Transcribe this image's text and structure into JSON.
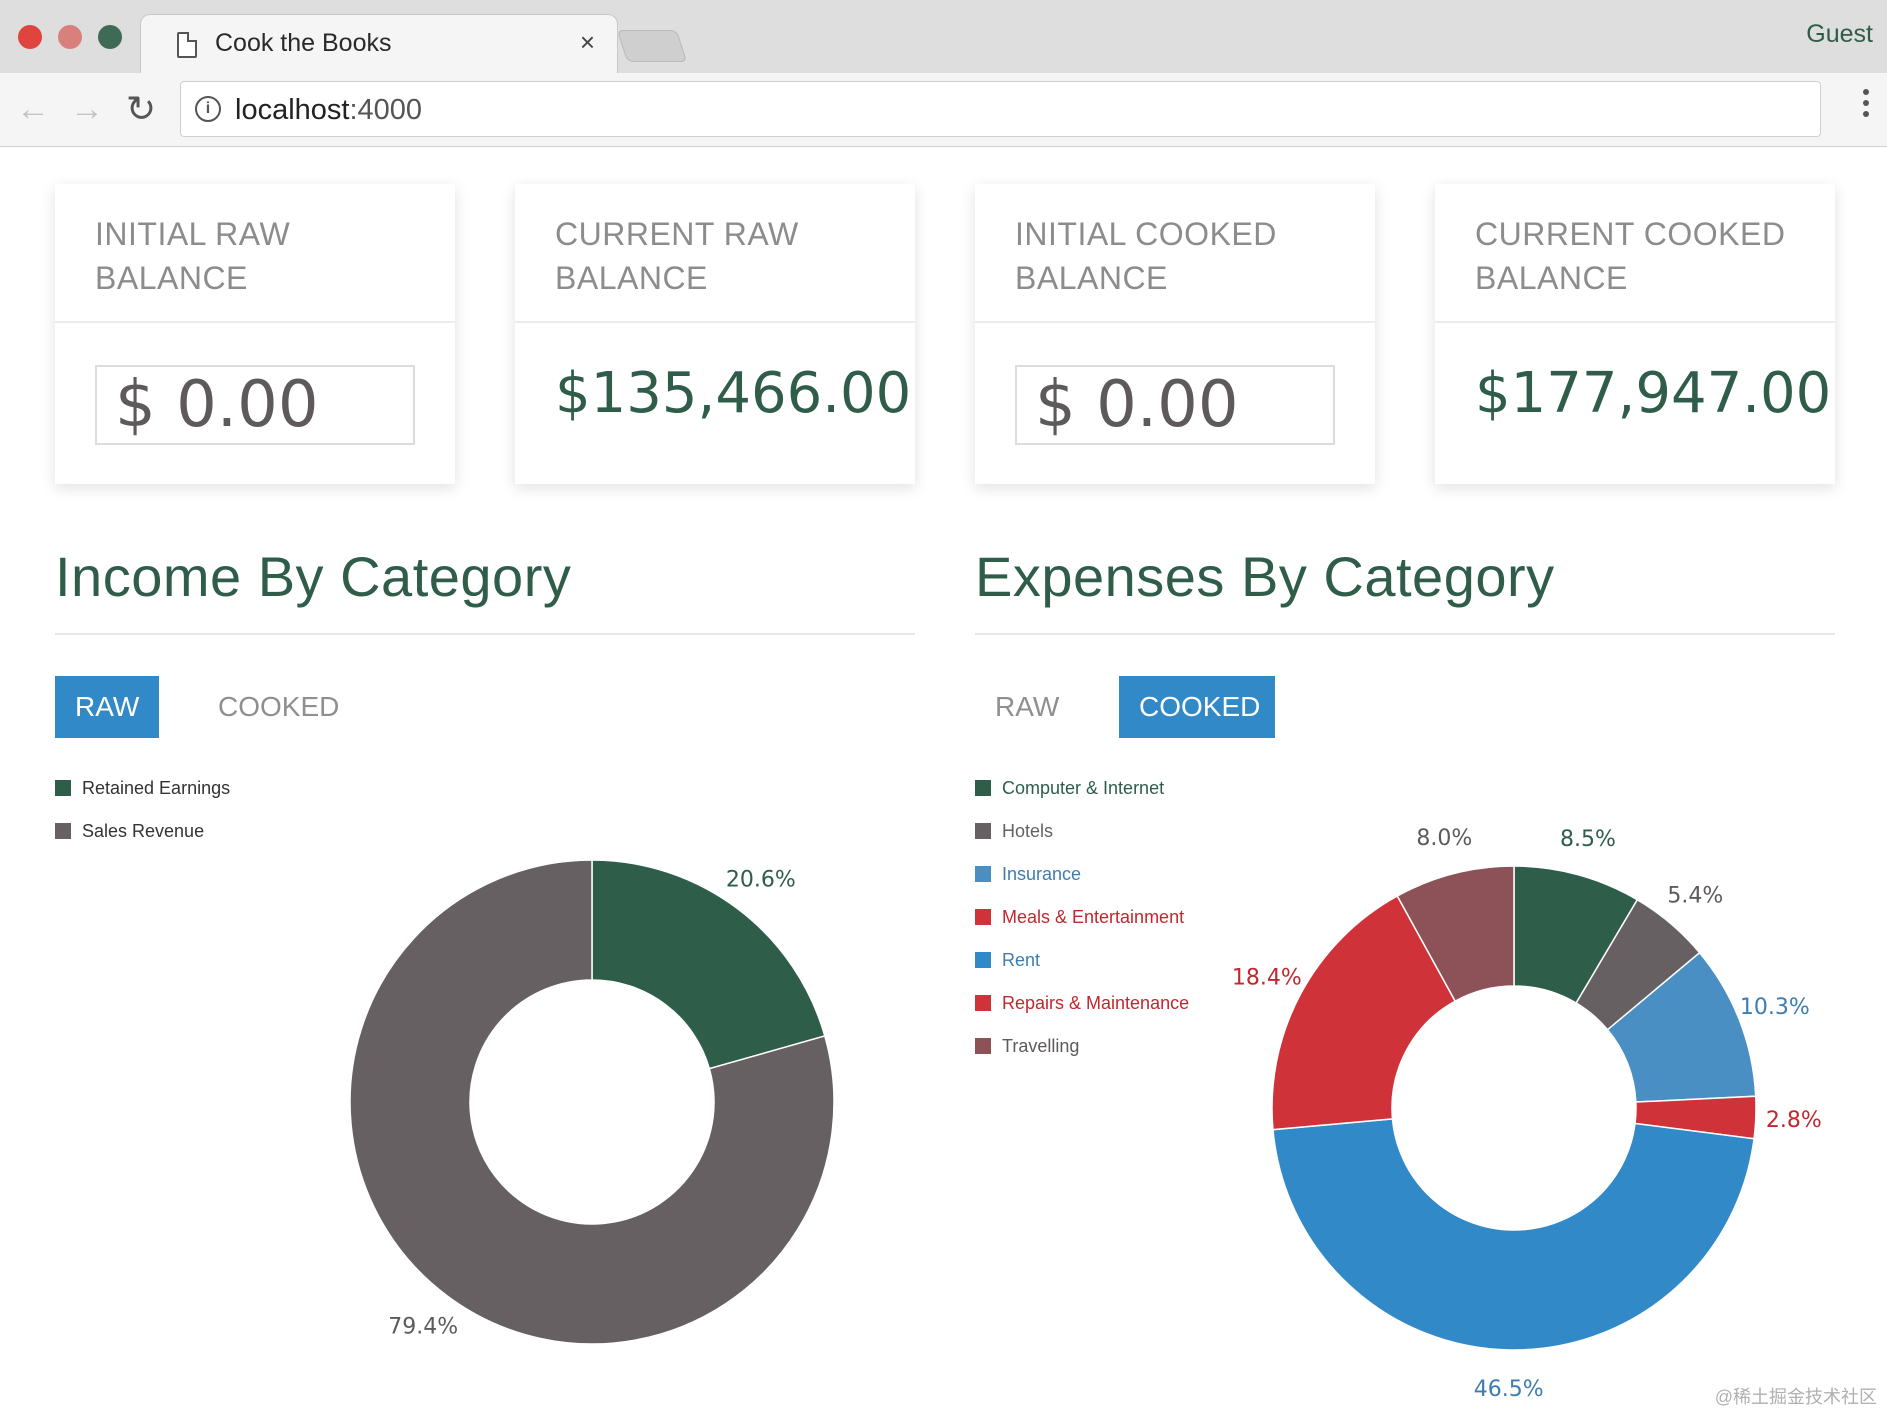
{
  "browser": {
    "tab_title": "Cook the Books",
    "tab_close": "×",
    "profile": "Guest",
    "url_host": "localhost",
    "url_port": ":4000",
    "back": "←",
    "forward": "→",
    "reload": "↻",
    "info": "i"
  },
  "cards": [
    {
      "title": "INITIAL RAW BALANCE",
      "value": "$ 0.00",
      "kind": "input"
    },
    {
      "title": "CURRENT RAW BALANCE",
      "value": "$135,466.00",
      "kind": "display"
    },
    {
      "title": "INITIAL COOKED BALANCE",
      "value": "$ 0.00",
      "kind": "input"
    },
    {
      "title": "CURRENT COOKED BALANCE",
      "value": "$177,947.00",
      "kind": "display"
    }
  ],
  "income": {
    "title": "Income By Category",
    "toggle_raw": "RAW",
    "toggle_cooked": "COOKED",
    "active": "RAW"
  },
  "expenses": {
    "title": "Expenses By Category",
    "toggle_raw": "RAW",
    "toggle_cooked": "COOKED",
    "active": "COOKED"
  },
  "colors": {
    "accent": "#3289c7",
    "brand_green": "#2f5d4a"
  },
  "chart_data": [
    {
      "type": "pie",
      "donut": true,
      "title": "Income By Category",
      "labels": [
        "Retained Earnings",
        "Sales Revenue"
      ],
      "values": [
        20.6,
        79.4
      ],
      "value_labels": [
        "20.6%",
        "79.4%"
      ],
      "colors": [
        "#2e5e4a",
        "#676063"
      ],
      "label_colors": [
        "#2e5e4a",
        "#5e5a5c"
      ],
      "legend": "top-left"
    },
    {
      "type": "pie",
      "donut": true,
      "title": "Expenses By Category",
      "labels": [
        "Computer & Internet",
        "Hotels",
        "Insurance",
        "Meals & Entertainment",
        "Rent",
        "Repairs & Maintenance",
        "Travelling"
      ],
      "values": [
        8.5,
        5.4,
        10.3,
        2.8,
        46.5,
        18.4,
        8.0
      ],
      "value_labels": [
        "8.5%",
        "5.4%",
        "10.3%",
        "2.8%",
        "46.5%",
        "18.4%",
        "8.0%"
      ],
      "colors": [
        "#2e5e4a",
        "#676063",
        "#4a8fc4",
        "#d0323a",
        "#3289c7",
        "#d0323a",
        "#8c5257"
      ],
      "label_colors": [
        "#2e5e4a",
        "#5e5a5c",
        "#3d7db0",
        "#c0282f",
        "#3d7db0",
        "#c0282f",
        "#5e5a5c"
      ],
      "legend_colors": [
        "#2e5e4a",
        "#676063",
        "#3d7db0",
        "#c0282f",
        "#3d7db0",
        "#c0282f",
        "#5e5a5c"
      ],
      "legend": "top-left"
    }
  ],
  "watermark": "@稀土掘金技术社区"
}
